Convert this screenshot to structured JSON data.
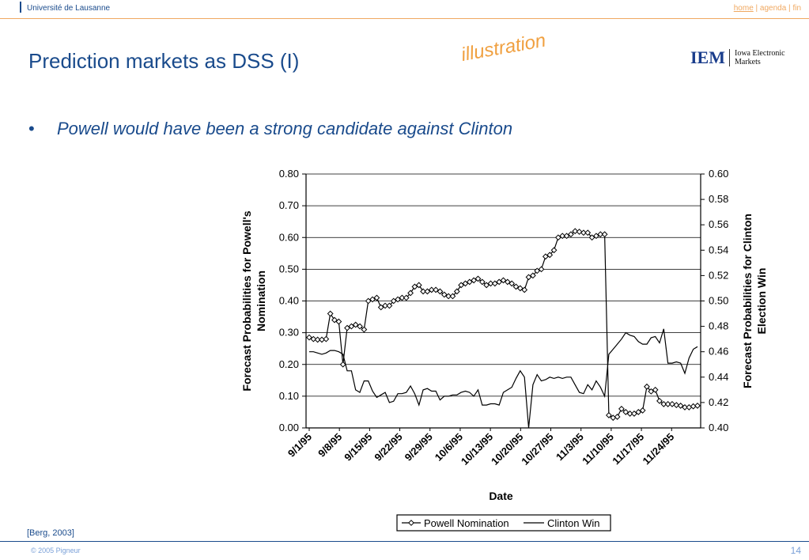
{
  "header": {
    "institution": "Université de Lausanne",
    "nav_home": "home",
    "nav_sep1": " | ",
    "nav_agenda": "agenda",
    "nav_sep2": " | ",
    "nav_fin": "fin",
    "accent_color": "#f0a860",
    "brand_color": "#1a4b8c"
  },
  "slide": {
    "title": "Prediction markets as DSS (I)",
    "stamp": "illustration",
    "bullet_marker": "•",
    "bullet_text": "Powell would have been a strong candidate against Clinton",
    "logo_mark": "IEM",
    "logo_line1": "Iowa Electronic",
    "logo_line2": "Markets",
    "citation": "[Berg, 2003]"
  },
  "footer": {
    "copyright": "© 2005  Pigneur",
    "page_number": "14"
  },
  "chart_data": {
    "type": "line",
    "xlabel": "Date",
    "ylabel_left": [
      "Forecast Probabilities for Powell's",
      "Nomination"
    ],
    "ylabel_right": [
      "Forecast Probabilities for Clinton",
      "Election Win"
    ],
    "x_tick_labels": [
      "9/1/95",
      "9/8/95",
      "9/15/95",
      "9/22/95",
      "9/29/95",
      "10/6/95",
      "10/13/95",
      "10/20/95",
      "10/27/95",
      "11/3/95",
      "11/10/95",
      "11/17/95",
      "11/24/95"
    ],
    "x_start": "9/1/95",
    "x_end": "11/30/95",
    "ylim_left": [
      0,
      0.8
    ],
    "left_ticks": [
      "0.00",
      "0.10",
      "0.20",
      "0.30",
      "0.40",
      "0.50",
      "0.60",
      "0.70",
      "0.80"
    ],
    "ylim_right": [
      0.4,
      0.6
    ],
    "right_ticks": [
      "0.40",
      "0.42",
      "0.44",
      "0.46",
      "0.48",
      "0.50",
      "0.52",
      "0.54",
      "0.56",
      "0.58",
      "0.60"
    ],
    "grid": "horizontal",
    "legend_placement": "bottom",
    "series": [
      {
        "name": "Powell Nomination",
        "axis": "left",
        "marker": "diamond",
        "values": [
          0.285,
          0.28,
          0.278,
          0.278,
          0.28,
          0.36,
          0.34,
          0.335,
          0.2,
          0.315,
          0.32,
          0.325,
          0.32,
          0.31,
          0.4,
          0.405,
          0.41,
          0.38,
          0.385,
          0.385,
          0.4,
          0.405,
          0.41,
          0.41,
          0.425,
          0.445,
          0.45,
          0.43,
          0.43,
          0.435,
          0.435,
          0.43,
          0.42,
          0.415,
          0.415,
          0.43,
          0.45,
          0.455,
          0.46,
          0.465,
          0.47,
          0.46,
          0.45,
          0.455,
          0.455,
          0.46,
          0.465,
          0.46,
          0.455,
          0.445,
          0.44,
          0.435,
          0.475,
          0.48,
          0.495,
          0.5,
          0.54,
          0.545,
          0.56,
          0.6,
          0.605,
          0.605,
          0.61,
          0.62,
          0.618,
          0.615,
          0.615,
          0.6,
          0.605,
          0.61,
          0.61,
          0.04,
          0.032,
          0.035,
          0.06,
          0.05,
          0.045,
          0.045,
          0.05,
          0.055,
          0.13,
          0.115,
          0.12,
          0.085,
          0.075,
          0.075,
          0.075,
          0.072,
          0.07,
          0.065,
          0.065,
          0.068,
          0.07
        ]
      },
      {
        "name": "Clinton Win",
        "axis": "right",
        "marker": "none",
        "values": [
          0.46,
          0.46,
          0.459,
          0.458,
          0.459,
          0.461,
          0.461,
          0.46,
          0.458,
          0.445,
          0.445,
          0.43,
          0.428,
          0.437,
          0.437,
          0.429,
          0.424,
          0.426,
          0.428,
          0.42,
          0.421,
          0.427,
          0.427,
          0.428,
          0.433,
          0.427,
          0.418,
          0.43,
          0.431,
          0.429,
          0.429,
          0.422,
          0.425,
          0.425,
          0.426,
          0.426,
          0.428,
          0.429,
          0.428,
          0.425,
          0.43,
          0.418,
          0.418,
          0.419,
          0.419,
          0.418,
          0.428,
          0.43,
          0.432,
          0.439,
          0.445,
          0.44,
          0.4,
          0.434,
          0.442,
          0.437,
          0.438,
          0.44,
          0.439,
          0.44,
          0.439,
          0.44,
          0.44,
          0.434,
          0.428,
          0.427,
          0.434,
          0.43,
          0.437,
          0.432,
          0.425,
          0.458,
          0.462,
          0.466,
          0.47,
          0.475,
          0.473,
          0.472,
          0.468,
          0.466,
          0.466,
          0.471,
          0.472,
          0.467,
          0.478,
          0.451,
          0.451,
          0.452,
          0.451,
          0.443,
          0.455,
          0.462,
          0.464
        ]
      }
    ]
  }
}
